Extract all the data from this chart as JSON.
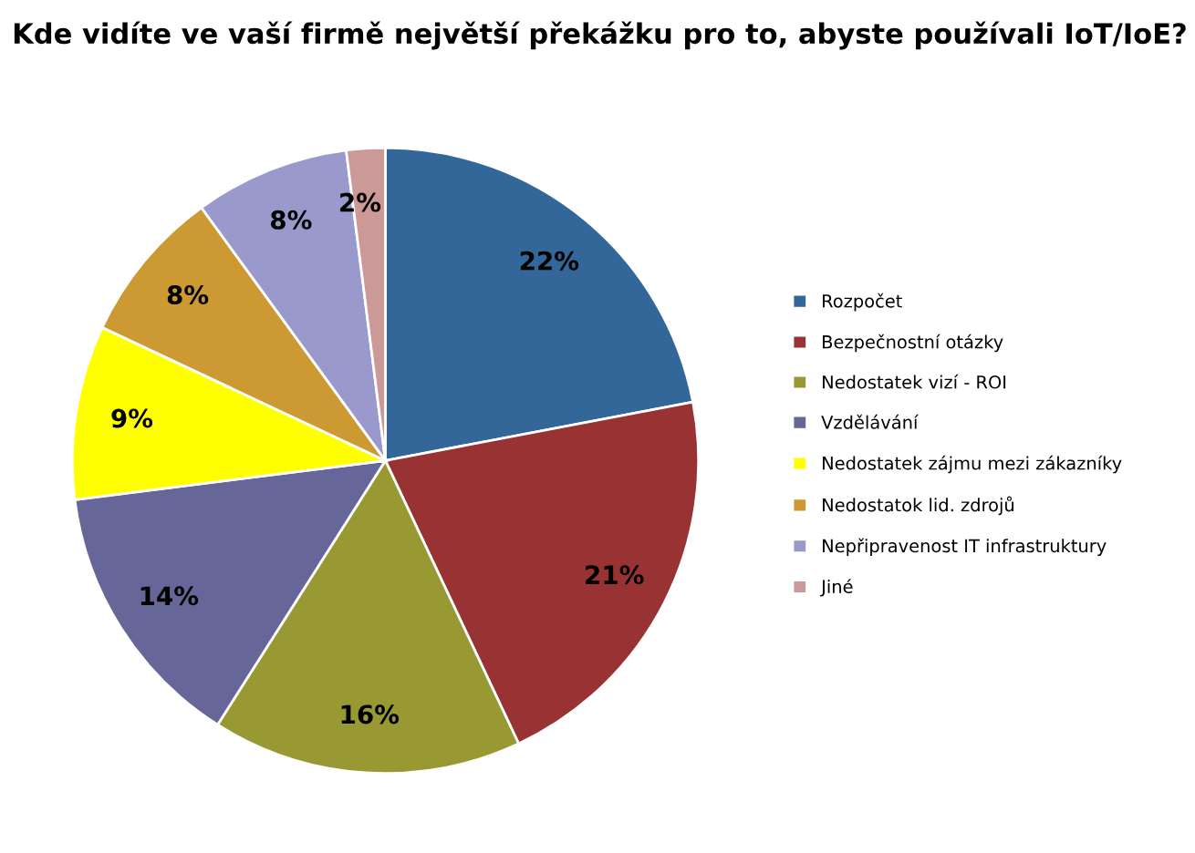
{
  "chart_data": {
    "type": "pie",
    "title": "Kde vidíte ve vaší firmě největší překážku pro to, abyste používali IoT/IoE?",
    "categories": [
      "Rozpočet",
      "Bezpečnostní otázky",
      "Nedostatek vizí - ROI",
      "Vzdělávání",
      "Nedostatek zájmu mezi zákazníky",
      "Nedostatok lid. zdrojů",
      "Nepřipravenost IT infrastruktury",
      "Jiné"
    ],
    "values": [
      22,
      21,
      16,
      14,
      9,
      8,
      8,
      2
    ],
    "colors": [
      "#336699",
      "#993333",
      "#999933",
      "#666699",
      "#ffff00",
      "#cc9933",
      "#9999cc",
      "#cc9999"
    ],
    "value_labels": [
      "22%",
      "21%",
      "16%",
      "14%",
      "9%",
      "8%",
      "8%",
      "2%"
    ],
    "legend": "right"
  }
}
